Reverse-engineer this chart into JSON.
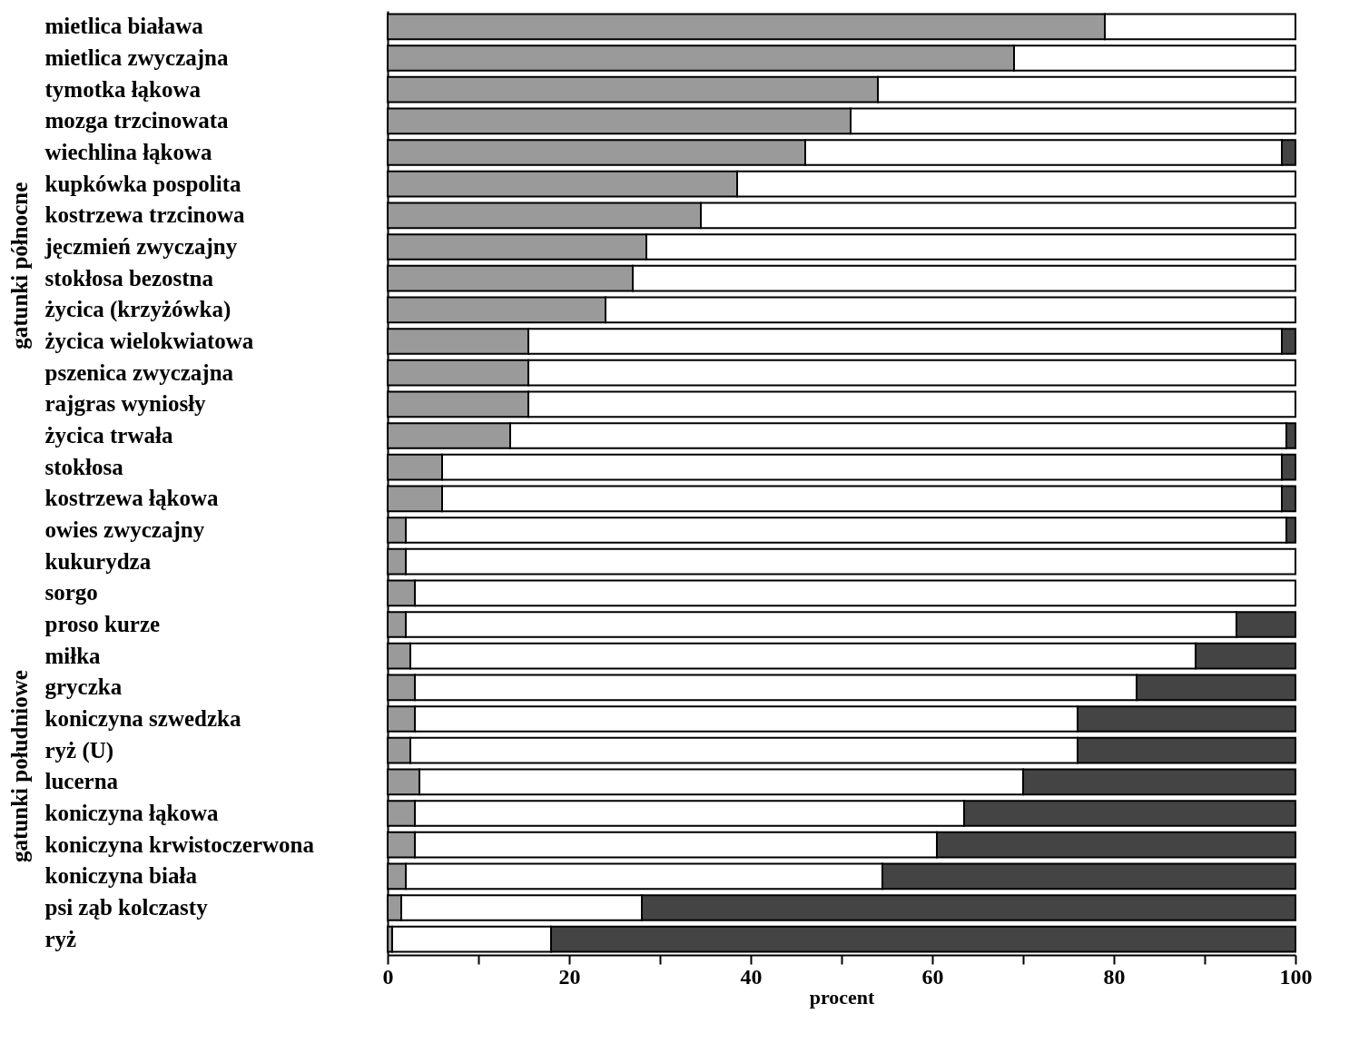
{
  "chart_data": {
    "type": "bar",
    "orientation": "horizontal",
    "stacked": true,
    "xlabel": "procent",
    "categories": [
      "mietlica biaława",
      "mietlica zwyczajna",
      "tymotka łąkowa",
      "mozga trzcinowata",
      "wiechlina łąkowa",
      "kupkówka pospolita",
      "kostrzewa trzcinowa",
      "jęczmień zwyczajny",
      "stokłosa bezostna",
      "życica (krzyżówka)",
      "życica wielokwiatowa",
      "pszenica zwyczajna",
      "rajgras wyniosły",
      "życica trwała",
      "stokłosa",
      "kostrzewa łąkowa",
      "owies zwyczajny",
      "kukurydza",
      "sorgo",
      "proso kurze",
      "miłka",
      "gryczka",
      "koniczyna szwedzka",
      "ryż (U)",
      "lucerna",
      "koniczyna łąkowa",
      "koniczyna krwistoczerwona",
      "koniczyna biała",
      "psi ząb kolczasty",
      "ryż"
    ],
    "series": [
      {
        "color": "#9a9a9a",
        "values": [
          79,
          69,
          54,
          51,
          46,
          38.5,
          34.5,
          28.5,
          27,
          24,
          15.5,
          15.5,
          15.5,
          13.5,
          6,
          6,
          2,
          2,
          3,
          2,
          2.5,
          3,
          3,
          2.5,
          3.5,
          3,
          3,
          2,
          1.5,
          0.5
        ]
      },
      {
        "color": "#ffffff",
        "values": [
          21,
          31,
          46,
          49,
          52.5,
          61.5,
          65.5,
          71.5,
          73,
          76,
          83,
          84.5,
          84.5,
          85.5,
          92.5,
          92.5,
          97,
          98,
          97,
          91.5,
          86.5,
          79.5,
          73,
          73.5,
          66.5,
          60.5,
          57.5,
          52.5,
          26.5,
          17.5
        ]
      },
      {
        "color": "#444444",
        "values": [
          0,
          0,
          0,
          0,
          1.5,
          0,
          0,
          0,
          0,
          0,
          1.5,
          0,
          0,
          1,
          1.5,
          1.5,
          1,
          0,
          0,
          6.5,
          11,
          17.5,
          24,
          24,
          30,
          36.5,
          39.5,
          45.5,
          72,
          82
        ]
      }
    ],
    "xlim": [
      0,
      100
    ],
    "xticks": [
      0,
      {
        "value": 10,
        "label": null
      },
      20,
      {
        "value": 30,
        "label": null
      },
      40,
      {
        "value": 50,
        "label": null
      },
      60,
      {
        "value": 70,
        "label": null
      },
      80,
      {
        "value": 90,
        "label": null
      },
      100
    ],
    "annotations": [
      "gatunki północne",
      "gatunki południowe"
    ],
    "grid": false,
    "legend": false
  }
}
